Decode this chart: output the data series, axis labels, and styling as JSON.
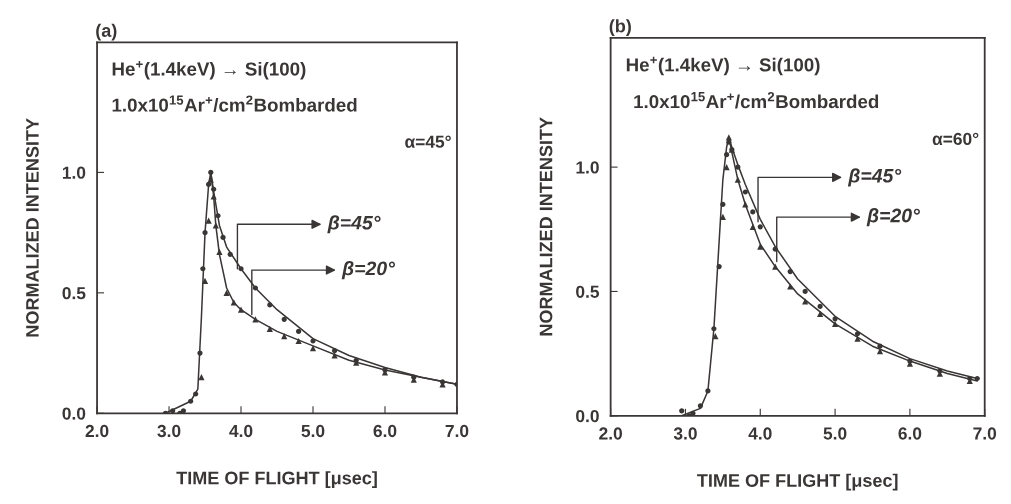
{
  "chart_data": [
    {
      "type": "scatter",
      "title": "(a)",
      "xlabel": "TIME OF FLIGHT [μsec]",
      "ylabel": "NORMALIZED INTENSITY",
      "xlim": [
        2.0,
        7.0
      ],
      "xticks": [
        {
          "value": 2,
          "label": "2.0"
        },
        {
          "value": 3,
          "label": "3.0"
        },
        {
          "value": 4,
          "label": "4.0"
        },
        {
          "value": 5,
          "label": "5.0"
        },
        {
          "value": 6,
          "label": "6.0"
        },
        {
          "value": 7,
          "label": "7.0"
        }
      ],
      "ylim": [
        0,
        1.54
      ],
      "yticks": [
        {
          "value": 0,
          "label": "0.0"
        },
        {
          "value": 0.5,
          "label": "0.5"
        },
        {
          "value": 1.0,
          "label": "1.0"
        }
      ],
      "grid": false,
      "annotations": [
        "He$^{+}$(1.4keV) → Si(100)",
        "1.0x10$^{15}$Ar$^{+}$/cm$^{2}$Bombarded",
        "α=45°",
        {
          "text": "β=45°",
          "x": 3.95,
          "y": 0.6
        },
        {
          "text": "β=20°",
          "x": 4.15,
          "y": 0.41
        }
      ],
      "series": [
        {
          "marker": "circle",
          "color": "#3a3636",
          "x": [
            2.95,
            3.05,
            3.15,
            3.2,
            3.3,
            3.37,
            3.43,
            3.47,
            3.5,
            3.55,
            3.58,
            3.62,
            3.68,
            3.75,
            3.85,
            4.0,
            4.2,
            4.4,
            4.6,
            4.8,
            5.0,
            5.3,
            5.6,
            6.0,
            6.4,
            6.8,
            7.0
          ],
          "values": [
            0.0,
            0.01,
            0.0,
            0.01,
            0.05,
            0.08,
            0.25,
            0.6,
            0.75,
            0.95,
            1.0,
            0.93,
            0.82,
            0.73,
            0.66,
            0.6,
            0.52,
            0.45,
            0.39,
            0.34,
            0.3,
            0.26,
            0.22,
            0.18,
            0.15,
            0.13,
            0.12
          ]
        },
        {
          "marker": "triangle",
          "color": "#3a3636",
          "x": [
            3.45,
            3.5,
            3.55,
            3.58,
            3.62,
            3.65,
            3.7,
            3.8,
            3.9,
            4.0,
            4.2,
            4.4,
            4.6,
            4.8,
            5.0,
            5.3,
            5.6,
            6.0,
            6.4,
            6.8
          ],
          "values": [
            0.15,
            0.55,
            0.8,
            0.97,
            0.9,
            0.78,
            0.67,
            0.5,
            0.46,
            0.43,
            0.39,
            0.35,
            0.32,
            0.3,
            0.27,
            0.24,
            0.21,
            0.17,
            0.14,
            0.12
          ]
        },
        {
          "type": "line",
          "marker": "none",
          "line_style": "solid",
          "color": "#3a3636",
          "x": [
            2.95,
            3.3,
            3.4,
            3.45,
            3.5,
            3.55,
            3.58,
            3.62,
            3.7,
            3.8,
            4.0,
            4.2,
            4.5,
            5.0,
            5.5,
            6.0,
            6.5,
            7.0
          ],
          "values": [
            0.0,
            0.05,
            0.1,
            0.4,
            0.75,
            0.95,
            1.0,
            0.92,
            0.78,
            0.69,
            0.6,
            0.52,
            0.43,
            0.31,
            0.24,
            0.19,
            0.15,
            0.12
          ]
        },
        {
          "type": "line",
          "marker": "none",
          "line_style": "solid",
          "color": "#3a3636",
          "x": [
            3.58,
            3.62,
            3.65,
            3.7,
            3.8,
            3.9,
            4.0,
            4.2,
            4.5,
            5.0,
            5.5,
            6.0,
            6.5,
            7.0
          ],
          "values": [
            1.0,
            0.9,
            0.78,
            0.66,
            0.52,
            0.46,
            0.43,
            0.39,
            0.34,
            0.28,
            0.22,
            0.18,
            0.15,
            0.12
          ]
        }
      ]
    },
    {
      "type": "scatter",
      "title": "(b)",
      "xlabel": "TIME OF FLIGHT [μsec]",
      "ylabel": "NORMALIZED INTENSITY",
      "xlim": [
        2.0,
        7.0
      ],
      "xticks": [
        {
          "value": 2,
          "label": "2.0"
        },
        {
          "value": 3,
          "label": "3.0"
        },
        {
          "value": 4,
          "label": "4.0"
        },
        {
          "value": 5,
          "label": "5.0"
        },
        {
          "value": 6,
          "label": "6.0"
        },
        {
          "value": 7,
          "label": "7.0"
        }
      ],
      "ylim": [
        0,
        1.52
      ],
      "yticks": [
        {
          "value": 0,
          "label": "0.0"
        },
        {
          "value": 0.5,
          "label": "0.5"
        },
        {
          "value": 1.0,
          "label": "1.0"
        }
      ],
      "grid": false,
      "annotations": [
        "He$^{+}$(1.4keV) → Si(100)",
        "1.0x10$^{15}$Ar$^{+}$/cm$^{2}$Bombarded",
        "α=60°",
        {
          "text": "β=45°",
          "x": 3.97,
          "y": 0.78
        },
        {
          "text": "β=20°",
          "x": 4.22,
          "y": 0.62
        }
      ],
      "series": [
        {
          "marker": "circle",
          "color": "#3a3636",
          "x": [
            2.95,
            3.05,
            3.1,
            3.2,
            3.3,
            3.38,
            3.45,
            3.5,
            3.55,
            3.58,
            3.62,
            3.7,
            3.8,
            3.9,
            4.0,
            4.2,
            4.4,
            4.6,
            4.8,
            5.0,
            5.3,
            5.6,
            6.0,
            6.4,
            6.8,
            6.9
          ],
          "values": [
            0.02,
            0.0,
            0.01,
            0.04,
            0.1,
            0.35,
            0.6,
            0.85,
            1.05,
            1.1,
            1.07,
            1.0,
            0.9,
            0.82,
            0.76,
            0.67,
            0.58,
            0.5,
            0.44,
            0.39,
            0.33,
            0.28,
            0.22,
            0.18,
            0.15,
            0.15
          ]
        },
        {
          "marker": "triangle",
          "color": "#3a3636",
          "x": [
            3.4,
            3.5,
            3.55,
            3.58,
            3.62,
            3.7,
            3.8,
            3.9,
            4.0,
            4.2,
            4.4,
            4.6,
            4.8,
            5.0,
            5.3,
            5.6,
            6.0,
            6.4,
            6.8
          ],
          "values": [
            0.32,
            0.8,
            1.0,
            1.12,
            1.07,
            0.95,
            0.85,
            0.76,
            0.68,
            0.6,
            0.52,
            0.46,
            0.41,
            0.37,
            0.31,
            0.26,
            0.21,
            0.17,
            0.14
          ]
        },
        {
          "type": "line",
          "marker": "none",
          "line_style": "solid",
          "color": "#3a3636",
          "x": [
            2.95,
            3.2,
            3.3,
            3.38,
            3.45,
            3.5,
            3.55,
            3.58,
            3.62,
            3.7,
            3.8,
            4.0,
            4.2,
            4.5,
            5.0,
            5.5,
            6.0,
            6.5,
            6.9
          ],
          "values": [
            0.0,
            0.03,
            0.1,
            0.35,
            0.7,
            0.95,
            1.08,
            1.12,
            1.08,
            1.01,
            0.93,
            0.79,
            0.68,
            0.55,
            0.4,
            0.3,
            0.23,
            0.18,
            0.15
          ]
        },
        {
          "type": "line",
          "marker": "none",
          "line_style": "solid",
          "color": "#3a3636",
          "x": [
            3.58,
            3.62,
            3.7,
            3.8,
            4.0,
            4.2,
            4.5,
            5.0,
            5.5,
            6.0,
            6.5,
            6.9
          ],
          "values": [
            1.12,
            1.06,
            0.95,
            0.85,
            0.69,
            0.6,
            0.49,
            0.37,
            0.28,
            0.22,
            0.17,
            0.14
          ]
        }
      ]
    }
  ]
}
